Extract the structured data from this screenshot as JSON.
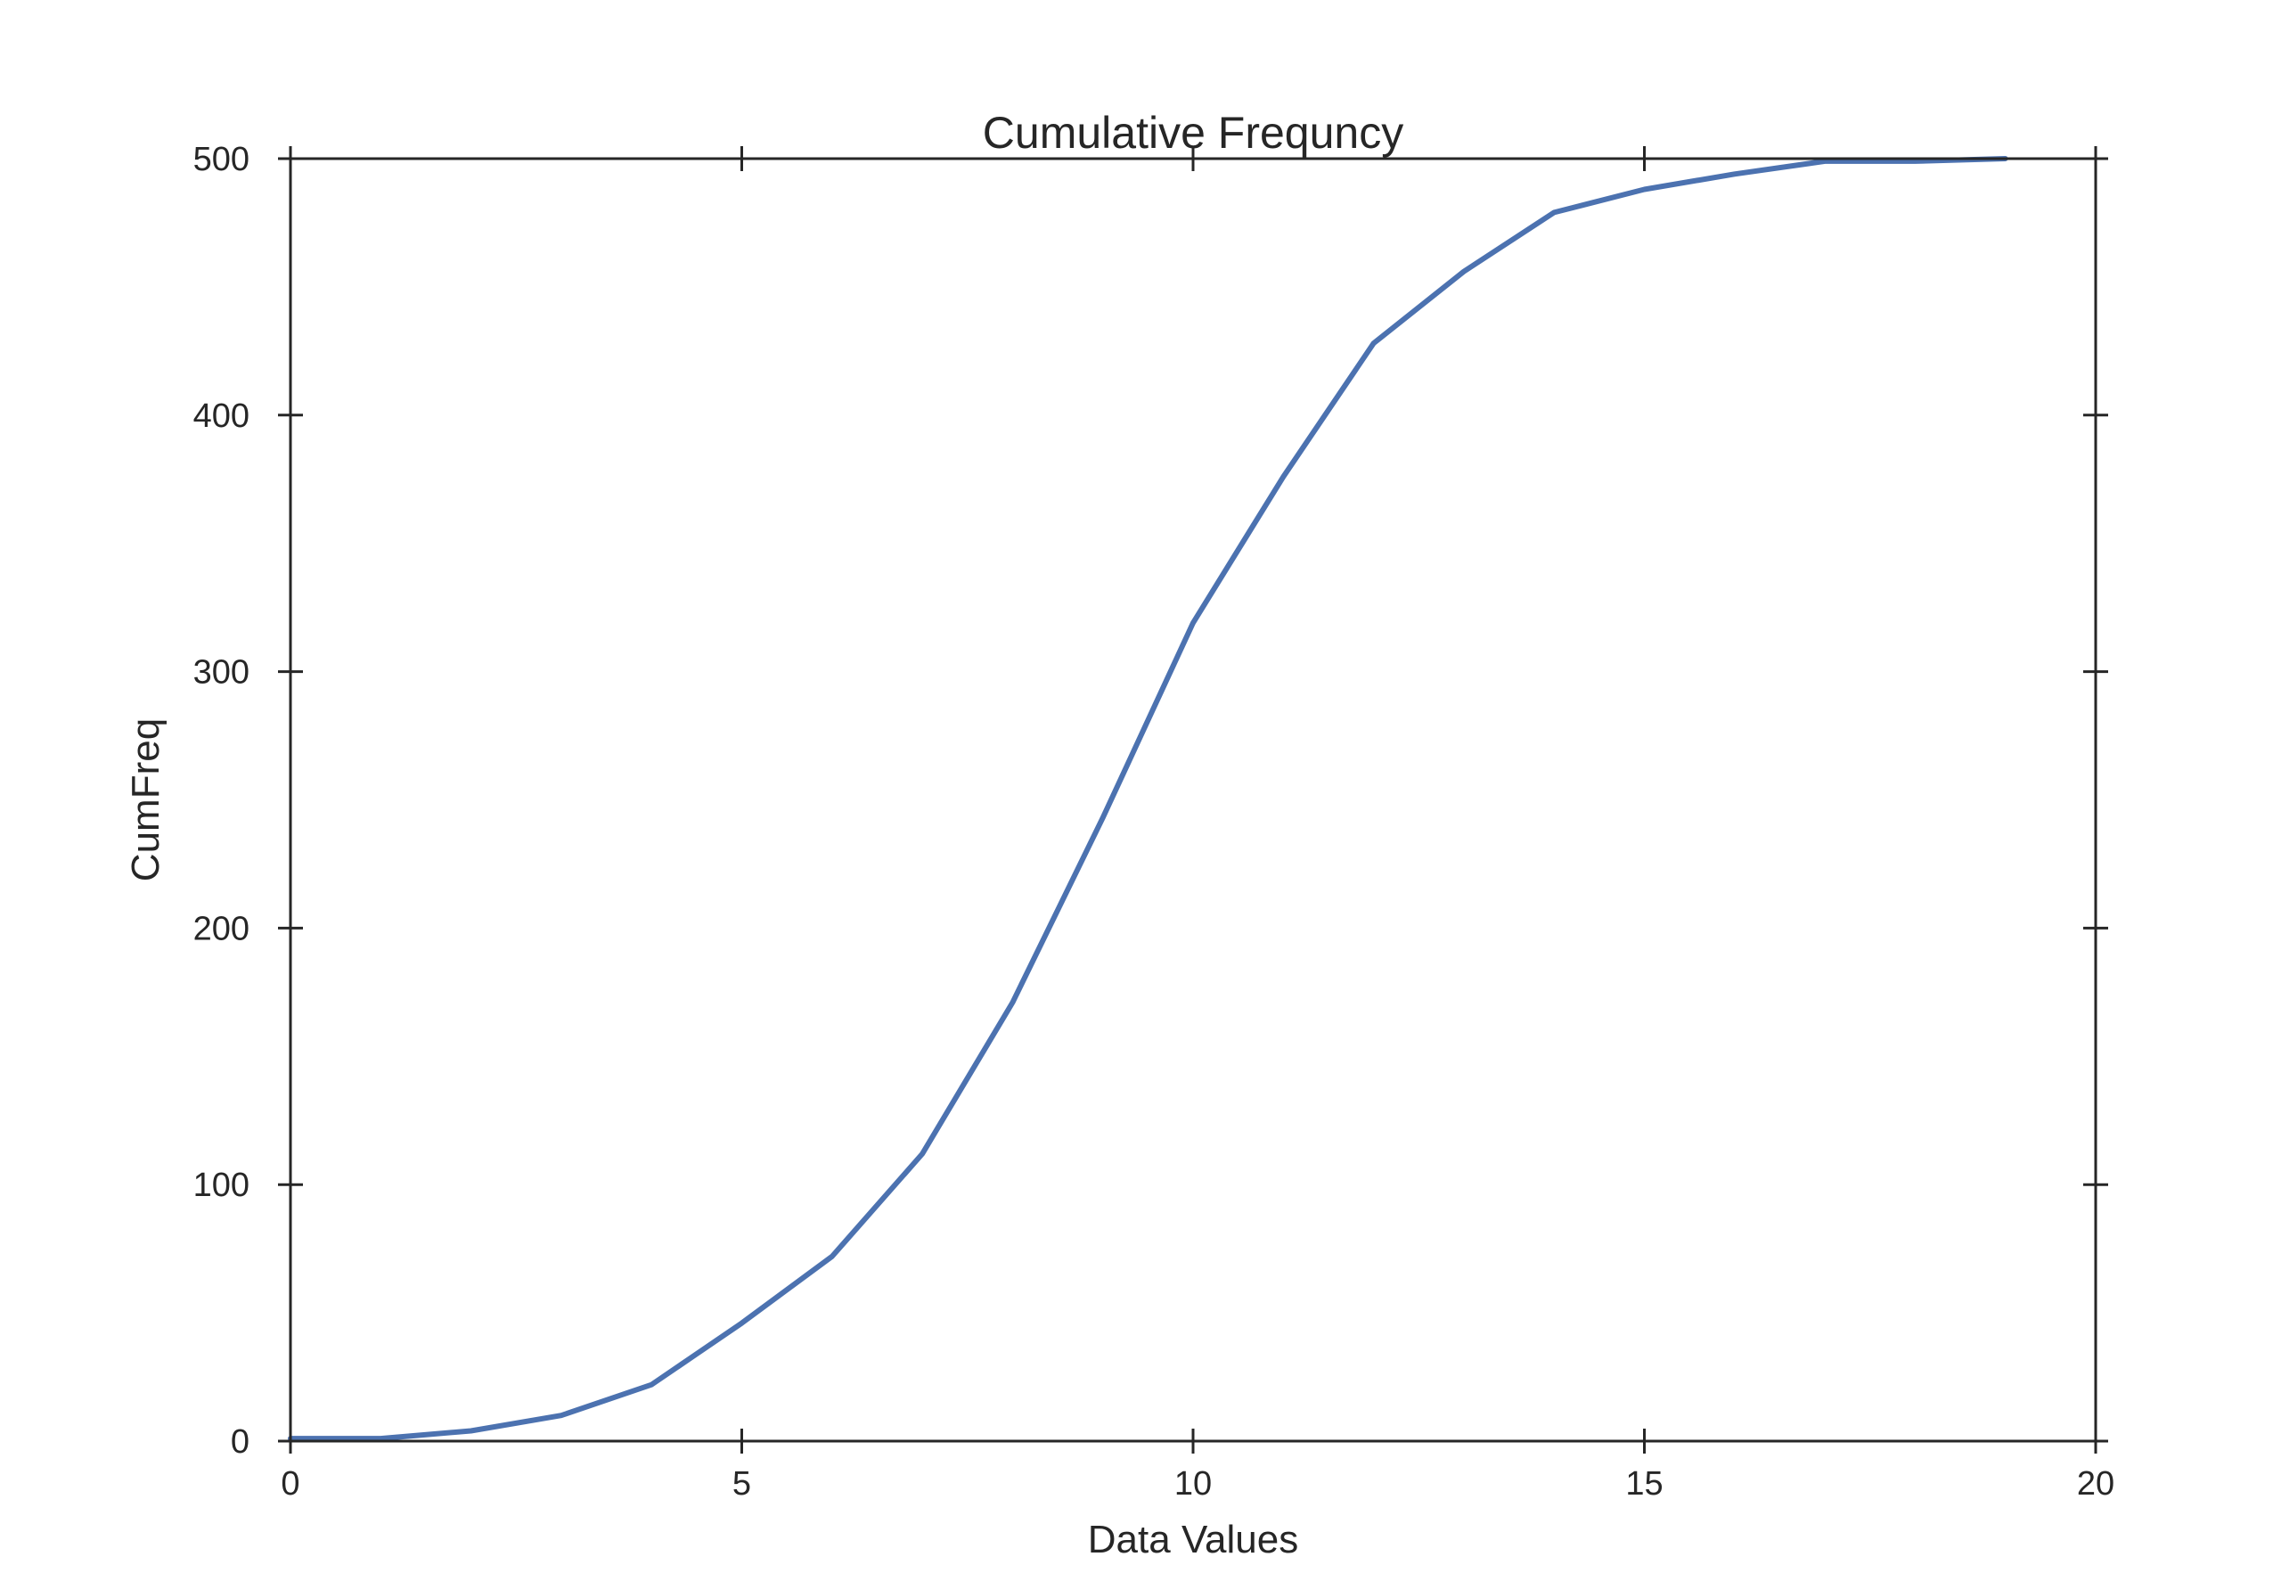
{
  "chart_data": {
    "type": "line",
    "title": "Cumulative Frequncy",
    "xlabel": "Data Values",
    "ylabel": "CumFreq",
    "xlim": [
      0,
      20
    ],
    "ylim": [
      0,
      500
    ],
    "x_ticks": [
      0,
      5,
      10,
      15,
      20
    ],
    "y_ticks": [
      0,
      100,
      200,
      300,
      400,
      500
    ],
    "x_tick_labels": [
      "0",
      "5",
      "10",
      "15",
      "20"
    ],
    "y_tick_labels": [
      "0",
      "100",
      "200",
      "300",
      "400",
      "500"
    ],
    "grid": false,
    "series": [
      {
        "color": "#4c72b0",
        "x": [
          0,
          1,
          2,
          3,
          4,
          5,
          6,
          7,
          8,
          9,
          10,
          11,
          12,
          13,
          14,
          15,
          16,
          17,
          18,
          19
        ],
        "y": [
          1,
          1,
          4,
          10,
          22,
          46,
          72,
          112,
          171,
          243,
          319,
          376,
          428,
          456,
          479,
          488,
          494,
          499,
          499,
          500
        ]
      }
    ],
    "baseline": {
      "y": 0,
      "style": "dashed",
      "color": "#999999"
    }
  }
}
